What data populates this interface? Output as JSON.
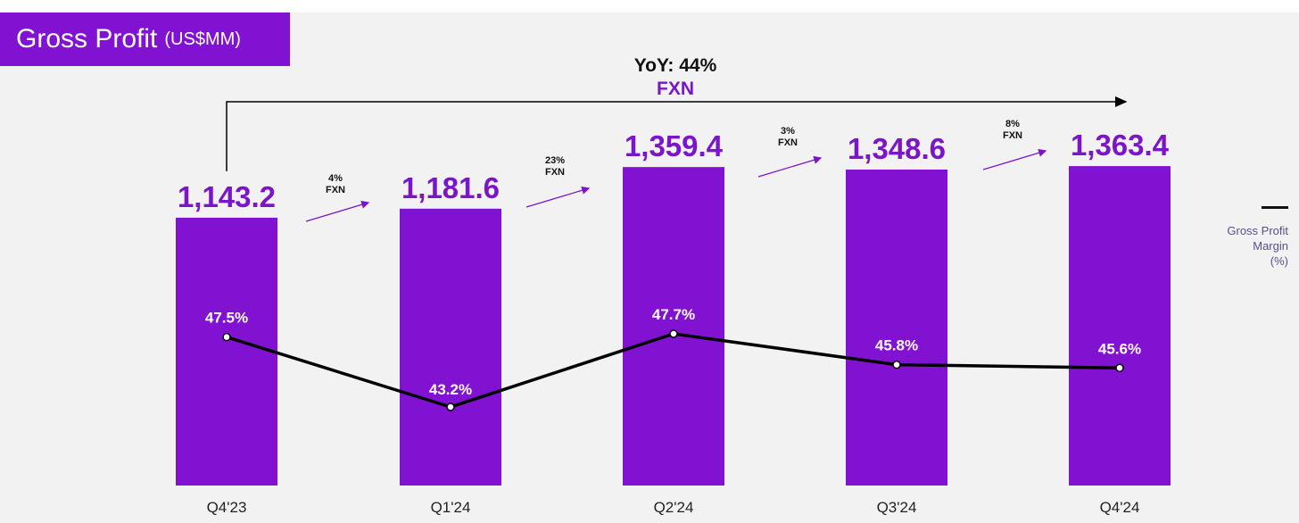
{
  "title": {
    "main": "Gross Profit",
    "unit": "(US$MM)"
  },
  "colors": {
    "bar": "#8212d1",
    "line": "#000000",
    "accent": "#7a16c8",
    "panel": "#f2f2f2"
  },
  "yoy": {
    "label": "YoY: 44%",
    "sub": "FXN"
  },
  "legend": {
    "line_label": "Gross Profit\nMargin\n(%)"
  },
  "chart_data": {
    "type": "bar",
    "title": "Gross Profit (US$MM)",
    "categories": [
      "Q4'23",
      "Q1'24",
      "Q2'24",
      "Q3'24",
      "Q4'24"
    ],
    "series": [
      {
        "name": "Gross Profit (US$MM)",
        "values": [
          1143.2,
          1181.6,
          1359.4,
          1348.6,
          1363.4
        ],
        "labels": [
          "1,143.2",
          "1,181.6",
          "1,359.4",
          "1,348.6",
          "1,363.4"
        ]
      },
      {
        "name": "Gross Profit Margin (%)",
        "type": "line",
        "values": [
          47.5,
          43.2,
          47.7,
          45.8,
          45.6
        ],
        "labels": [
          "47.5%",
          "43.2%",
          "47.7%",
          "45.8%",
          "45.6%"
        ]
      }
    ],
    "growth": [
      {
        "pct": "4%",
        "note": "FXN"
      },
      {
        "pct": "23%",
        "note": "FXN"
      },
      {
        "pct": "3%",
        "note": "FXN"
      },
      {
        "pct": "8%",
        "note": "FXN"
      }
    ],
    "xlabel": "",
    "ylabel": ""
  }
}
